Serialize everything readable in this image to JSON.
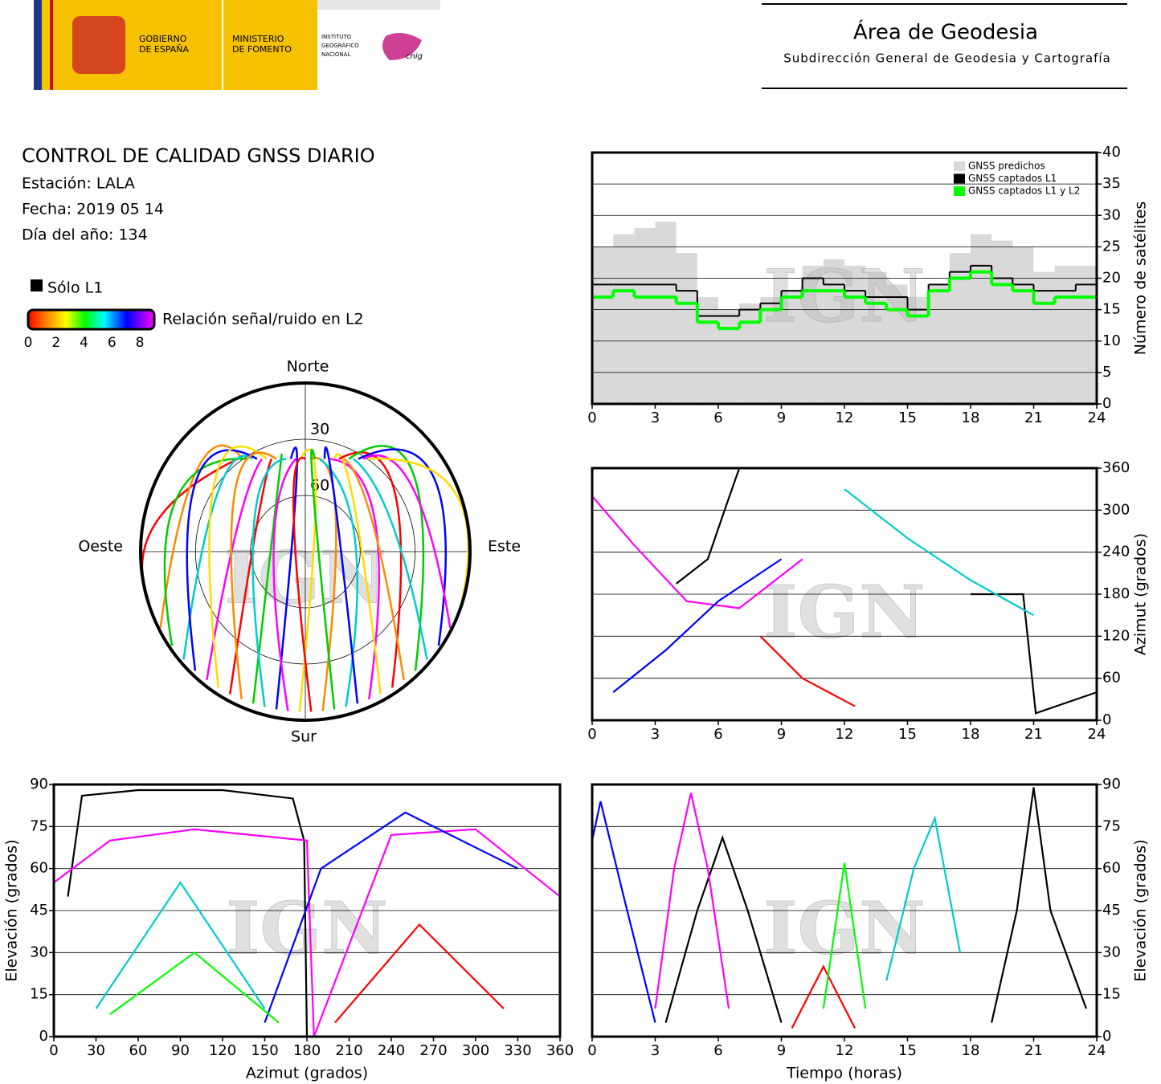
{
  "header": {
    "gov1": "GOBIERNO",
    "gov2": "DE ESPAÑA",
    "min1": "MINISTERIO",
    "min2": "DE FOMENTO",
    "inst1": "INSTITUTO",
    "inst2": "GEOGRÁFICO",
    "inst3": "NACIONAL",
    "cnig": "cnig",
    "title": "Área de Geodesia",
    "subtitle": "Subdirección General de Geodesia y Cartografía"
  },
  "report": {
    "title": "CONTROL DE CALIDAD GNSS DIARIO",
    "station": "Estación: LALA",
    "date": "Fecha: 2019 05 14",
    "doy": "Día del año: 134",
    "legend_l1": "Sólo L1",
    "legend_snr": "Relación señal/ruido en L2",
    "snr_ticks": [
      0,
      2,
      4,
      6,
      8
    ]
  },
  "chart_data": [
    {
      "type": "polar",
      "watermark": "IGN",
      "directions": {
        "north": "Norte",
        "south": "Sur",
        "west": "Oeste",
        "east": "Este"
      },
      "rlim": [
        90,
        0
      ],
      "rticks": [
        30,
        60
      ]
    },
    {
      "type": "step",
      "watermark": "IGN",
      "ylabel": "Número de satélites",
      "grid": true,
      "legend": "top-right",
      "xlim": [
        0,
        24
      ],
      "xticks": [
        0,
        3,
        6,
        9,
        12,
        15,
        18,
        21,
        24
      ],
      "ylim": [
        0,
        40
      ],
      "yticks": [
        0,
        5,
        10,
        15,
        20,
        25,
        30,
        35,
        40
      ],
      "x": [
        0.5,
        1.5,
        2.5,
        3.5,
        4.5,
        5.5,
        6.5,
        7.5,
        8.5,
        9.5,
        10.5,
        11.5,
        12.5,
        13.5,
        14.5,
        15.5,
        16.5,
        17.5,
        18.5,
        19.5,
        20.5,
        21.5,
        22.5,
        23.5
      ],
      "series": [
        {
          "name": "GNSS predichos",
          "color": "#d9d9d9",
          "fill": true,
          "values": [
            25,
            27,
            28,
            29,
            24,
            17,
            15,
            16,
            17,
            18,
            22,
            23,
            22,
            21,
            19,
            17,
            19,
            24,
            27,
            26,
            25,
            21,
            22,
            22
          ]
        },
        {
          "name": "GNSS captados L1",
          "color": "#000000",
          "fill": false,
          "values": [
            19,
            19,
            19,
            19,
            18,
            14,
            14,
            15,
            16,
            18,
            20,
            19,
            18,
            17,
            17,
            15,
            19,
            21,
            22,
            20,
            19,
            18,
            18,
            19
          ]
        },
        {
          "name": "GNSS captados L1 y L2",
          "color": "#00ff00",
          "fill": false,
          "values": [
            17,
            18,
            17,
            17,
            16,
            13,
            12,
            13,
            15,
            17,
            18,
            18,
            17,
            16,
            15,
            14,
            18,
            20,
            21,
            19,
            18,
            16,
            17,
            17
          ]
        }
      ]
    },
    {
      "type": "line",
      "watermark": "IGN",
      "ylabel": "Azimut (grados)",
      "grid": true,
      "xlim": [
        0,
        24
      ],
      "xticks": [
        0,
        3,
        6,
        9,
        12,
        15,
        18,
        21,
        24
      ],
      "ylim": [
        0,
        360
      ],
      "yticks": [
        0,
        60,
        120,
        180,
        240,
        300,
        360
      ],
      "series": [
        {
          "color": "#000000",
          "x": [
            4.0,
            5.5,
            6.3,
            7.0
          ],
          "values": [
            195,
            230,
            300,
            360
          ]
        },
        {
          "color": "#000000",
          "x": [
            18.0,
            20.5,
            21.1,
            24.0
          ],
          "values": [
            180,
            180,
            10,
            40
          ]
        },
        {
          "color": "#ff00ff",
          "x": [
            0.0,
            2.0,
            4.5,
            7.0,
            10.0
          ],
          "values": [
            320,
            250,
            170,
            160,
            230
          ]
        },
        {
          "color": "#0000ff",
          "x": [
            1.0,
            3.5,
            6.0,
            9.0
          ],
          "values": [
            40,
            100,
            170,
            230
          ]
        },
        {
          "color": "#00cccc",
          "x": [
            12.0,
            15.0,
            18.0,
            21.0
          ],
          "values": [
            330,
            260,
            200,
            150
          ]
        },
        {
          "color": "#ff0000",
          "x": [
            8.0,
            10.0,
            12.5
          ],
          "values": [
            120,
            60,
            20
          ]
        }
      ]
    },
    {
      "type": "line",
      "watermark": "IGN",
      "xlabel": "Azimut (grados)",
      "ylabel": "Elevación (grados)",
      "grid": true,
      "xlim": [
        0,
        360
      ],
      "xticks": [
        0,
        30,
        60,
        90,
        120,
        150,
        180,
        210,
        240,
        270,
        300,
        330,
        360
      ],
      "ylim": [
        0,
        90
      ],
      "yticks": [
        0,
        15,
        30,
        45,
        60,
        75,
        90
      ],
      "series": [
        {
          "color": "#000000",
          "x": [
            10,
            20,
            60,
            120,
            170,
            178,
            180
          ],
          "values": [
            50,
            86,
            88,
            88,
            85,
            70,
            0
          ]
        },
        {
          "color": "#ff00ff",
          "x": [
            0,
            40,
            100,
            180,
            185,
            240,
            300,
            360
          ],
          "values": [
            55,
            70,
            74,
            70,
            0,
            72,
            74,
            50
          ]
        },
        {
          "color": "#0000ff",
          "x": [
            150,
            190,
            250,
            330
          ],
          "values": [
            5,
            60,
            80,
            60
          ]
        },
        {
          "color": "#00cccc",
          "x": [
            30,
            90,
            150
          ],
          "values": [
            10,
            55,
            10
          ]
        },
        {
          "color": "#ff0000",
          "x": [
            200,
            260,
            320
          ],
          "values": [
            5,
            40,
            10
          ]
        },
        {
          "color": "#00ff00",
          "x": [
            40,
            100,
            160
          ],
          "values": [
            8,
            30,
            5
          ]
        }
      ]
    },
    {
      "type": "line",
      "watermark": "IGN",
      "xlabel": "Tiempo (horas)",
      "ylabel": "Elevación (grados)",
      "grid": true,
      "xlim": [
        0,
        24
      ],
      "xticks": [
        0,
        3,
        6,
        9,
        12,
        15,
        18,
        21,
        24
      ],
      "ylim": [
        0,
        90
      ],
      "yticks": [
        0,
        15,
        30,
        45,
        60,
        75,
        90
      ],
      "series": [
        {
          "color": "#000000",
          "x": [
            3.5,
            5.0,
            6.2,
            7.4,
            9.0
          ],
          "values": [
            5,
            45,
            71,
            45,
            5
          ]
        },
        {
          "color": "#000000",
          "x": [
            19.0,
            20.2,
            21.0,
            21.8,
            23.5
          ],
          "values": [
            5,
            45,
            89,
            45,
            10
          ]
        },
        {
          "color": "#ff00ff",
          "x": [
            3.0,
            3.9,
            4.7,
            5.5,
            6.5
          ],
          "values": [
            10,
            60,
            87,
            60,
            10
          ]
        },
        {
          "color": "#0000ff",
          "x": [
            0.0,
            0.4,
            1.5,
            3.0
          ],
          "values": [
            70,
            84,
            50,
            5
          ]
        },
        {
          "color": "#00cccc",
          "x": [
            14.0,
            15.3,
            16.3,
            17.5
          ],
          "values": [
            20,
            60,
            78,
            30
          ]
        },
        {
          "color": "#ff0000",
          "x": [
            9.5,
            11.0,
            12.5
          ],
          "values": [
            3,
            25,
            3
          ]
        },
        {
          "color": "#00ff00",
          "x": [
            11.0,
            12.0,
            13.0
          ],
          "values": [
            10,
            62,
            10
          ]
        }
      ]
    }
  ]
}
